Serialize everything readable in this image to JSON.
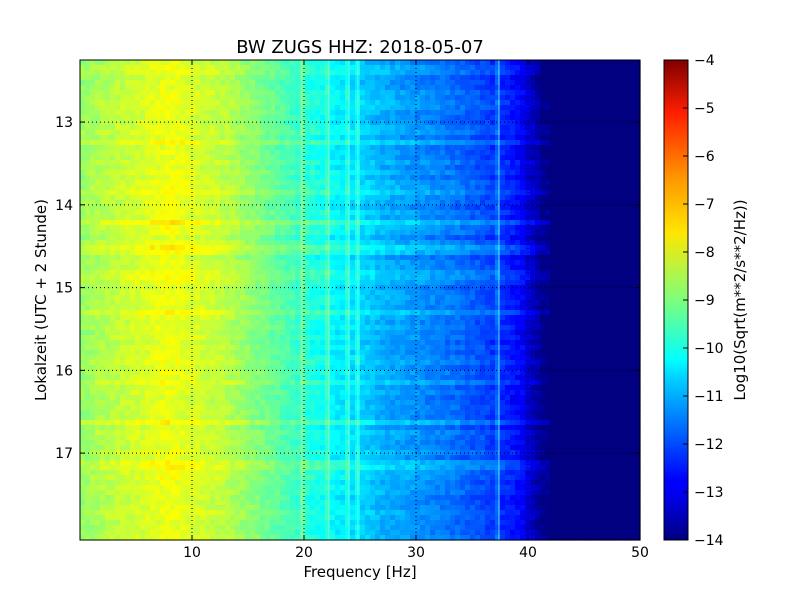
{
  "chart_data": {
    "type": "heatmap",
    "title": "BW ZUGS HHZ: 2018-05-07",
    "xlabel": "Frequency [Hz]",
    "ylabel": "Lokalzeit (UTC + 2 Stunde)",
    "xlim": [
      0,
      50
    ],
    "ylim": [
      12.25,
      18.05
    ],
    "y_inverted": true,
    "x_ticks": [
      10,
      20,
      30,
      40,
      50
    ],
    "y_ticks": [
      13,
      14,
      15,
      16,
      17
    ],
    "grid": true,
    "colormap": "jet",
    "colorbar": {
      "label": "Log10(Sqrt(m**2/s**2/Hz))",
      "min": -14,
      "max": -4,
      "ticks": [
        -4,
        -5,
        -6,
        -7,
        -8,
        -9,
        -10,
        -11,
        -12,
        -13,
        -14
      ]
    },
    "spectrum_profile": {
      "frequency_hz": [
        0,
        2,
        5,
        8,
        10,
        13,
        16,
        19,
        21,
        24,
        27,
        30,
        33,
        36,
        38,
        39.5,
        40.5,
        41.5,
        50
      ],
      "log10_amplitude": [
        -8.8,
        -8.5,
        -8.2,
        -7.9,
        -8.1,
        -8.4,
        -9.0,
        -9.6,
        -10.0,
        -10.5,
        -11.0,
        -11.3,
        -11.6,
        -12.0,
        -12.4,
        -12.8,
        -13.4,
        -14.0,
        -14.0
      ]
    },
    "spectral_lines_hz": [
      19.8,
      22.2,
      24.0,
      24.8,
      37.4
    ],
    "bright_time_bands_h": [
      13.25,
      13.85,
      14.2,
      14.55,
      14.85,
      15.3,
      16.15,
      16.65,
      17.15
    ]
  }
}
